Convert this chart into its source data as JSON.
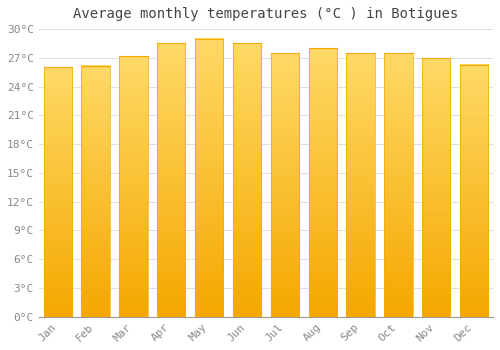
{
  "title": "Average monthly temperatures (°C ) in Botigues",
  "months": [
    "Jan",
    "Feb",
    "Mar",
    "Apr",
    "May",
    "Jun",
    "Jul",
    "Aug",
    "Sep",
    "Oct",
    "Nov",
    "Dec"
  ],
  "values": [
    26.0,
    26.2,
    27.2,
    28.5,
    29.0,
    28.5,
    27.5,
    28.0,
    27.5,
    27.5,
    27.0,
    26.3
  ],
  "bar_color_top": "#FFD966",
  "bar_color_bottom": "#F5A800",
  "background_color": "#FFFFFF",
  "grid_color": "#DDDDDD",
  "text_color": "#888888",
  "title_color": "#444444",
  "ylim": [
    0,
    30
  ],
  "ytick_step": 3,
  "title_fontsize": 10,
  "tick_fontsize": 8,
  "bar_width": 0.75
}
